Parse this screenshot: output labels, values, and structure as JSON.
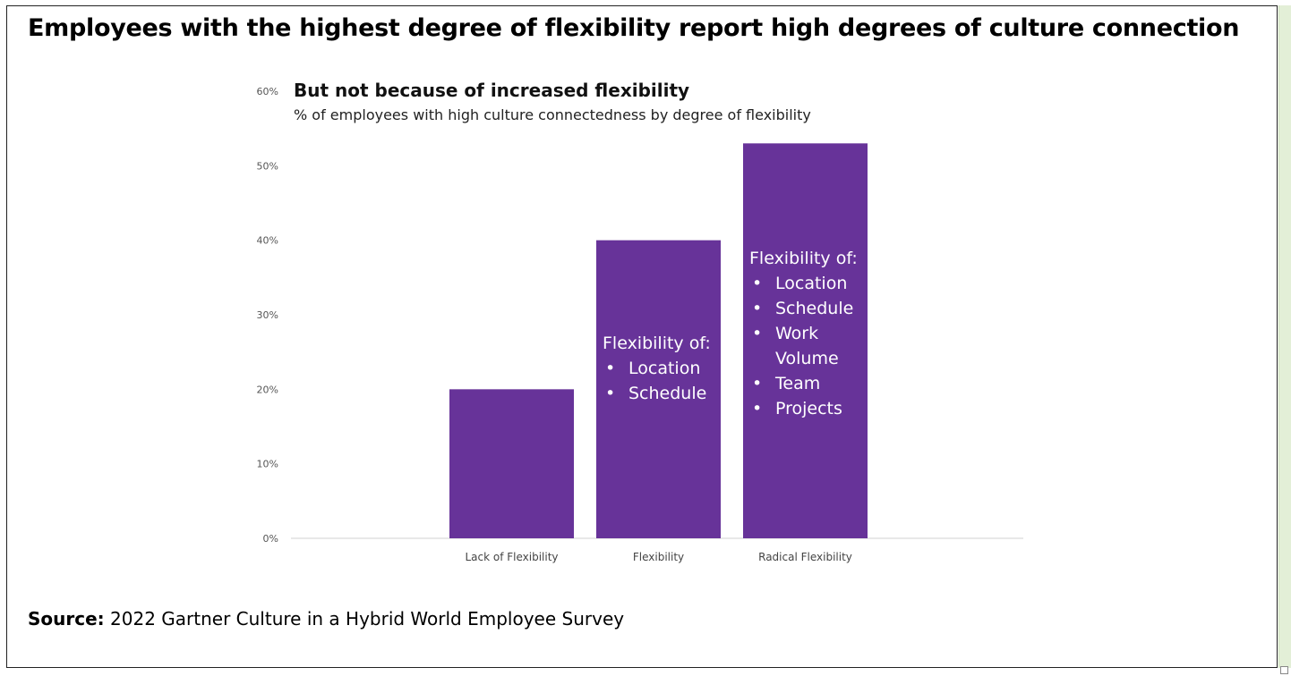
{
  "header": {
    "title": "Employees with the highest degree of flexibility report high degrees of culture connection"
  },
  "footer": {
    "source_label": "Source:",
    "source_text": "2022 Gartner Culture in a Hybrid World Employee Survey"
  },
  "colors": {
    "bar": "#673399",
    "axis_line": "#d0d0d0",
    "side_strip": "#e3efd7"
  },
  "chart_data": {
    "type": "bar",
    "title": "But not because of increased flexibility",
    "subtitle": "% of employees with high culture connectedness by degree of flexibility",
    "xlabel": "",
    "ylabel": "",
    "categories": [
      "Lack of Flexibility",
      "Flexibility",
      "Radical Flexibility"
    ],
    "values": [
      20,
      40,
      53
    ],
    "ylim": [
      0,
      60
    ],
    "yticks": [
      0,
      10,
      20,
      30,
      40,
      50,
      60
    ],
    "ytick_labels": [
      "0%",
      "10%",
      "20%",
      "30%",
      "40%",
      "50%",
      "60%"
    ],
    "grid": false,
    "annotations": [
      {
        "category": "Flexibility",
        "heading": "Flexibility of:",
        "bullets": [
          "Location",
          "Schedule"
        ]
      },
      {
        "category": "Radical Flexibility",
        "heading": "Flexibility of:",
        "bullets": [
          "Location",
          "Schedule",
          "Work Volume",
          "Team",
          "Projects"
        ]
      }
    ]
  }
}
